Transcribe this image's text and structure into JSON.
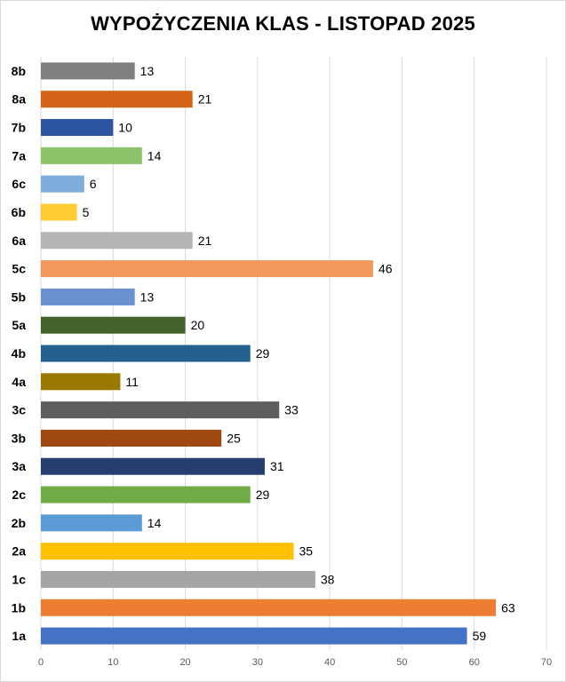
{
  "chart_data": {
    "type": "bar",
    "orientation": "horizontal",
    "title": "WYPOŻYCZENIA KLAS - LISTOPAD 2025",
    "xlabel": "",
    "ylabel": "",
    "xlim": [
      0,
      70
    ],
    "ticks": [
      0,
      10,
      20,
      30,
      40,
      50,
      60,
      70
    ],
    "grid": true,
    "legend": "none",
    "categories": [
      "8b",
      "8a",
      "7b",
      "7a",
      "6c",
      "6b",
      "6a",
      "5c",
      "5b",
      "5a",
      "4b",
      "4a",
      "3c",
      "3b",
      "3a",
      "2c",
      "2b",
      "2a",
      "1c",
      "1b",
      "1a"
    ],
    "values": [
      13,
      21,
      10,
      14,
      6,
      5,
      21,
      46,
      13,
      20,
      29,
      11,
      33,
      25,
      31,
      29,
      14,
      35,
      38,
      63,
      59
    ],
    "colors": [
      "#7f7f7f",
      "#d46318",
      "#2e55a0",
      "#8bc46a",
      "#7eaedd",
      "#ffcd33",
      "#b6b6b6",
      "#f2995c",
      "#6b90d0",
      "#426329",
      "#25618f",
      "#9a7900",
      "#5e5e5e",
      "#9f4812",
      "#263f70",
      "#6fac46",
      "#5b9bd5",
      "#ffc000",
      "#a5a5a5",
      "#ed7d31",
      "#4472c4"
    ]
  }
}
